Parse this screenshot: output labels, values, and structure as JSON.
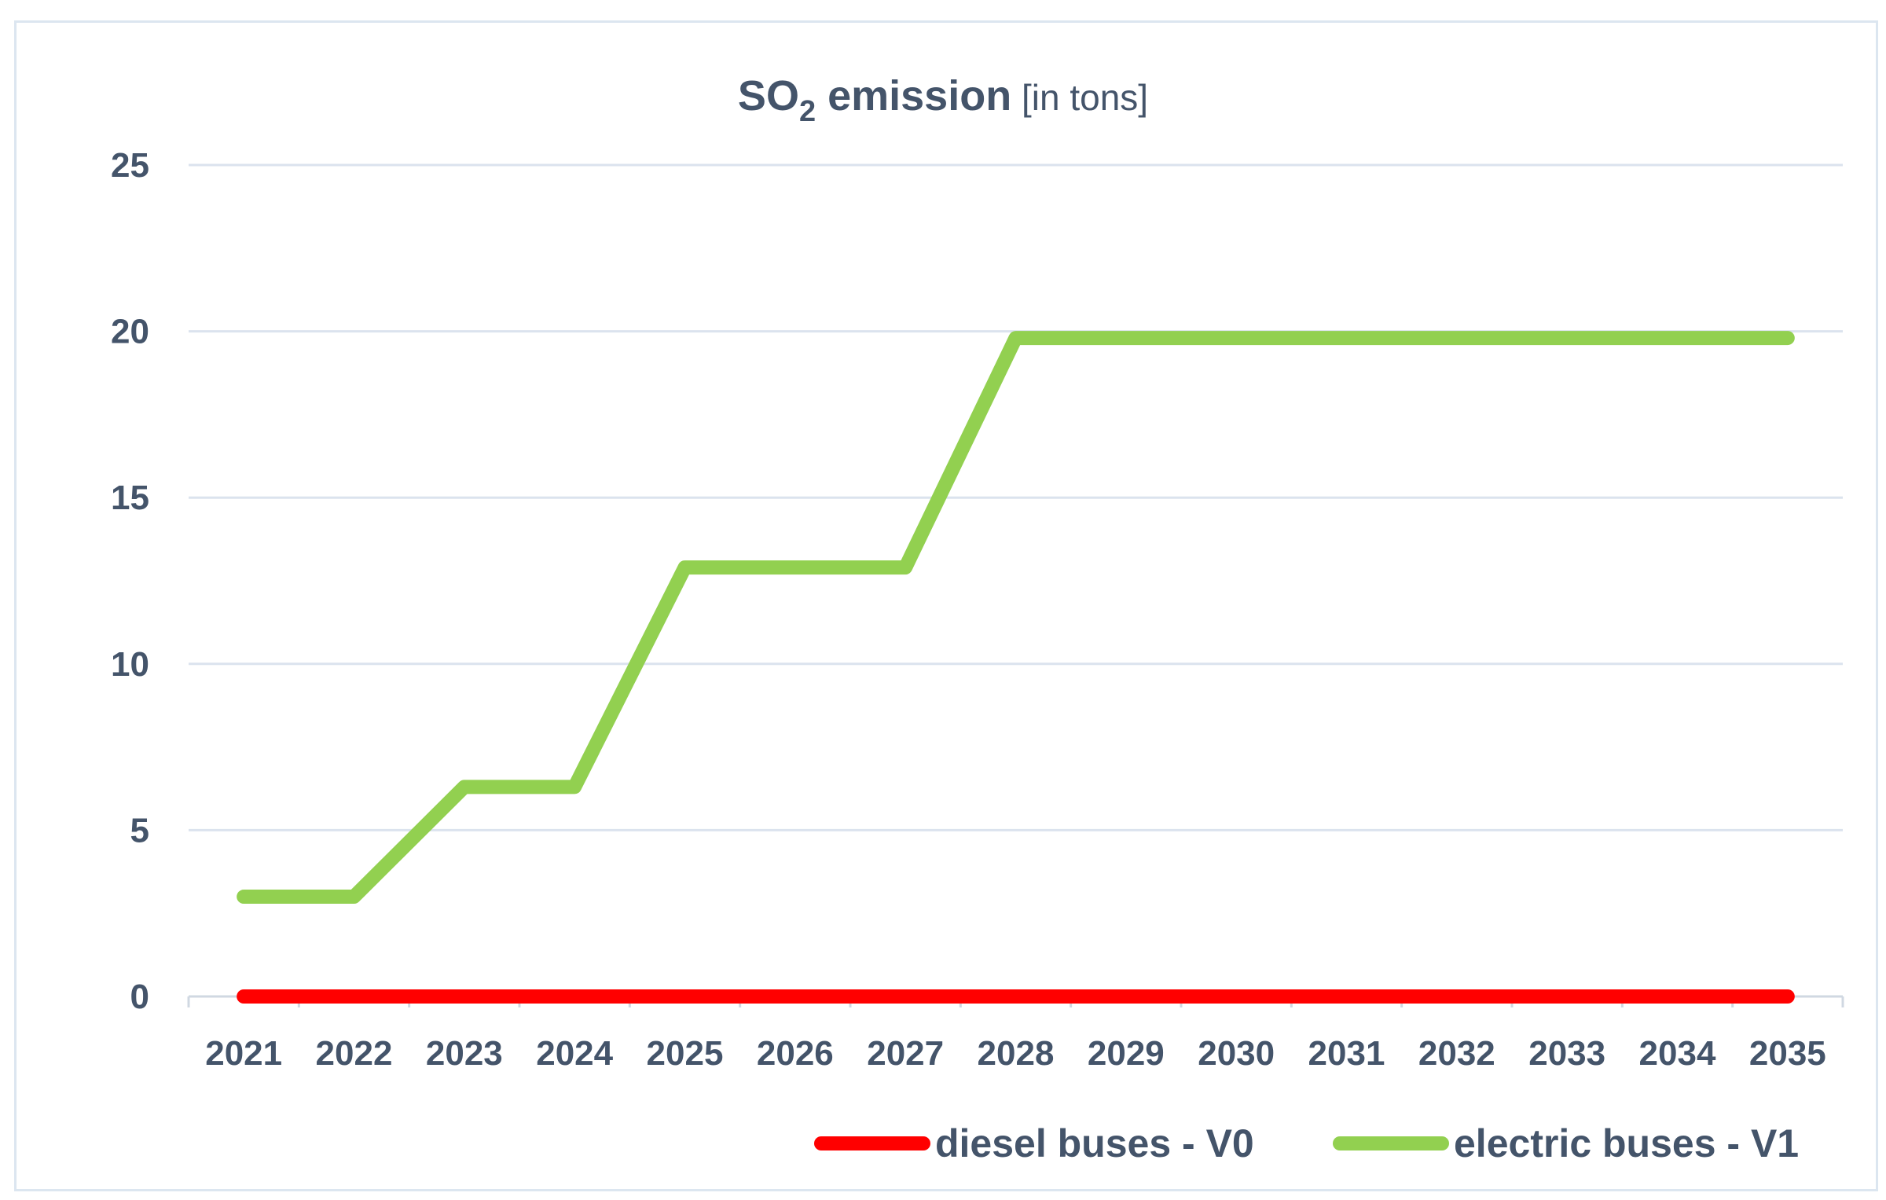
{
  "chart_data": {
    "type": "line",
    "title": {
      "main": "SO",
      "subscript": "2",
      "main_suffix": " emission",
      "unit": " [in tons]"
    },
    "xlabel": "",
    "ylabel": "",
    "categories": [
      "2021",
      "2022",
      "2023",
      "2024",
      "2025",
      "2026",
      "2027",
      "2028",
      "2029",
      "2030",
      "2031",
      "2032",
      "2033",
      "2034",
      "2035"
    ],
    "ylim": [
      0,
      25
    ],
    "yticks": [
      0,
      5,
      10,
      15,
      20,
      25
    ],
    "grid": true,
    "legend_position": "bottom-right",
    "series": [
      {
        "name": "diesel buses - V0",
        "color": "#ff0000",
        "values": [
          0,
          0,
          0,
          0,
          0,
          0,
          0,
          0,
          0,
          0,
          0,
          0,
          0,
          0,
          0
        ]
      },
      {
        "name": "electric buses - V1",
        "color": "#92d050",
        "values": [
          3,
          3,
          6.3,
          6.3,
          12.9,
          12.9,
          12.9,
          19.8,
          19.8,
          19.8,
          19.8,
          19.8,
          19.8,
          19.8,
          19.8
        ]
      }
    ]
  }
}
